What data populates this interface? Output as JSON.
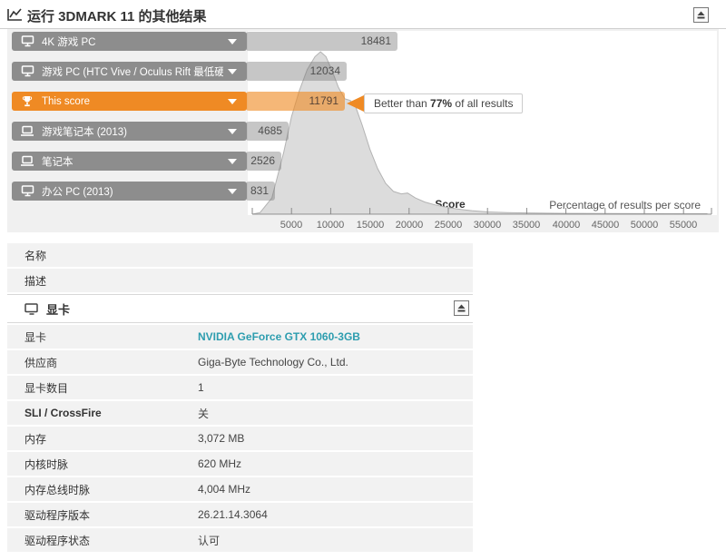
{
  "page": {
    "title": "运行 3DMARK 11 的其他结果"
  },
  "chart": {
    "bars": [
      {
        "label": "4K 游戏 PC",
        "value": "18481",
        "icon": "desktop-pc"
      },
      {
        "label": "游戏 PC (HTC Vive / Oculus Rift 最低硬件规格)",
        "value": "12034",
        "icon": "desktop-pc"
      },
      {
        "label": "This score",
        "value": "11791",
        "icon": "trophy"
      },
      {
        "label": "游戏笔记本 (2013)",
        "value": "4685",
        "icon": "laptop"
      },
      {
        "label": "笔记本",
        "value": "2526",
        "icon": "laptop"
      },
      {
        "label": "办公 PC (2013)",
        "value": "831",
        "icon": "desktop-pc"
      }
    ],
    "callout": {
      "prefix": "Better than ",
      "percent": "77%",
      "suffix": " of all results"
    },
    "axis": {
      "ticks": [
        "5000",
        "10000",
        "15000",
        "20000",
        "25000",
        "30000",
        "35000",
        "40000",
        "45000",
        "50000",
        "55000"
      ],
      "score_label": "Score",
      "right_label": "Percentage of results per score"
    }
  },
  "chart_data": {
    "type": "area",
    "title": "运行 3DMARK 11 的其他结果",
    "xlabel": "Score",
    "ylabel": "Percentage of results per score",
    "xlim": [
      0,
      58000
    ],
    "x_ticks": [
      5000,
      10000,
      15000,
      20000,
      25000,
      30000,
      35000,
      40000,
      45000,
      50000,
      55000
    ],
    "this_score": 11791,
    "better_than_percent": 77,
    "reference_scores": [
      {
        "label": "4K 游戏 PC",
        "score": 18481
      },
      {
        "label": "游戏 PC (HTC Vive / Oculus Rift 最低硬件规格)",
        "score": 12034
      },
      {
        "label": "This score",
        "score": 11791
      },
      {
        "label": "游戏笔记本 (2013)",
        "score": 4685
      },
      {
        "label": "笔记本",
        "score": 2526
      },
      {
        "label": "办公 PC (2013)",
        "score": 831
      }
    ],
    "distribution": [
      [
        0,
        0
      ],
      [
        1000,
        1
      ],
      [
        2500,
        10
      ],
      [
        4000,
        38
      ],
      [
        5000,
        60
      ],
      [
        6000,
        76
      ],
      [
        7000,
        89
      ],
      [
        8000,
        97
      ],
      [
        8700,
        100
      ],
      [
        9400,
        97
      ],
      [
        10200,
        88
      ],
      [
        11000,
        78
      ],
      [
        11800,
        71
      ],
      [
        12500,
        70
      ],
      [
        13200,
        66
      ],
      [
        14000,
        55
      ],
      [
        15000,
        40
      ],
      [
        16000,
        28
      ],
      [
        17000,
        19
      ],
      [
        18000,
        14
      ],
      [
        19000,
        12.5
      ],
      [
        19800,
        13
      ],
      [
        20800,
        10
      ],
      [
        22000,
        7.5
      ],
      [
        23500,
        5.5
      ],
      [
        25000,
        4
      ],
      [
        26500,
        3
      ],
      [
        28000,
        2.2
      ],
      [
        30000,
        1.4
      ],
      [
        32500,
        1
      ],
      [
        35000,
        0.8
      ],
      [
        40000,
        0.5
      ],
      [
        45000,
        0.4
      ],
      [
        50000,
        0.35
      ],
      [
        58000,
        0.3
      ]
    ]
  },
  "table": {
    "top_rows": [
      {
        "label": "名称",
        "value": ""
      },
      {
        "label": "描述",
        "value": ""
      }
    ],
    "section": {
      "title": "显卡"
    },
    "gpu_rows": [
      {
        "label": "显卡",
        "value": "NVIDIA GeForce GTX 1060-3GB"
      },
      {
        "label": "供应商",
        "value": "Giga-Byte Technology Co., Ltd."
      },
      {
        "label": "显卡数目",
        "value": "1"
      },
      {
        "label": "SLI / CrossFire",
        "value": "关"
      },
      {
        "label": "内存",
        "value": "3,072 MB"
      },
      {
        "label": "内核时脉",
        "value": "620 MHz"
      },
      {
        "label": "内存总线时脉",
        "value": "4,004 MHz"
      },
      {
        "label": "驱动程序版本",
        "value": "26.21.14.3064"
      },
      {
        "label": "驱动程序状态",
        "value": "认可"
      }
    ]
  },
  "colors": {
    "accent_orange": "#ef8a24",
    "bar_gray": "#8d8d8d",
    "link_teal": "#2d9daf",
    "row_bg": "#f2f2f2",
    "chart_bg": "#f0f0f0",
    "curve_fill": "#dcdcdc"
  }
}
